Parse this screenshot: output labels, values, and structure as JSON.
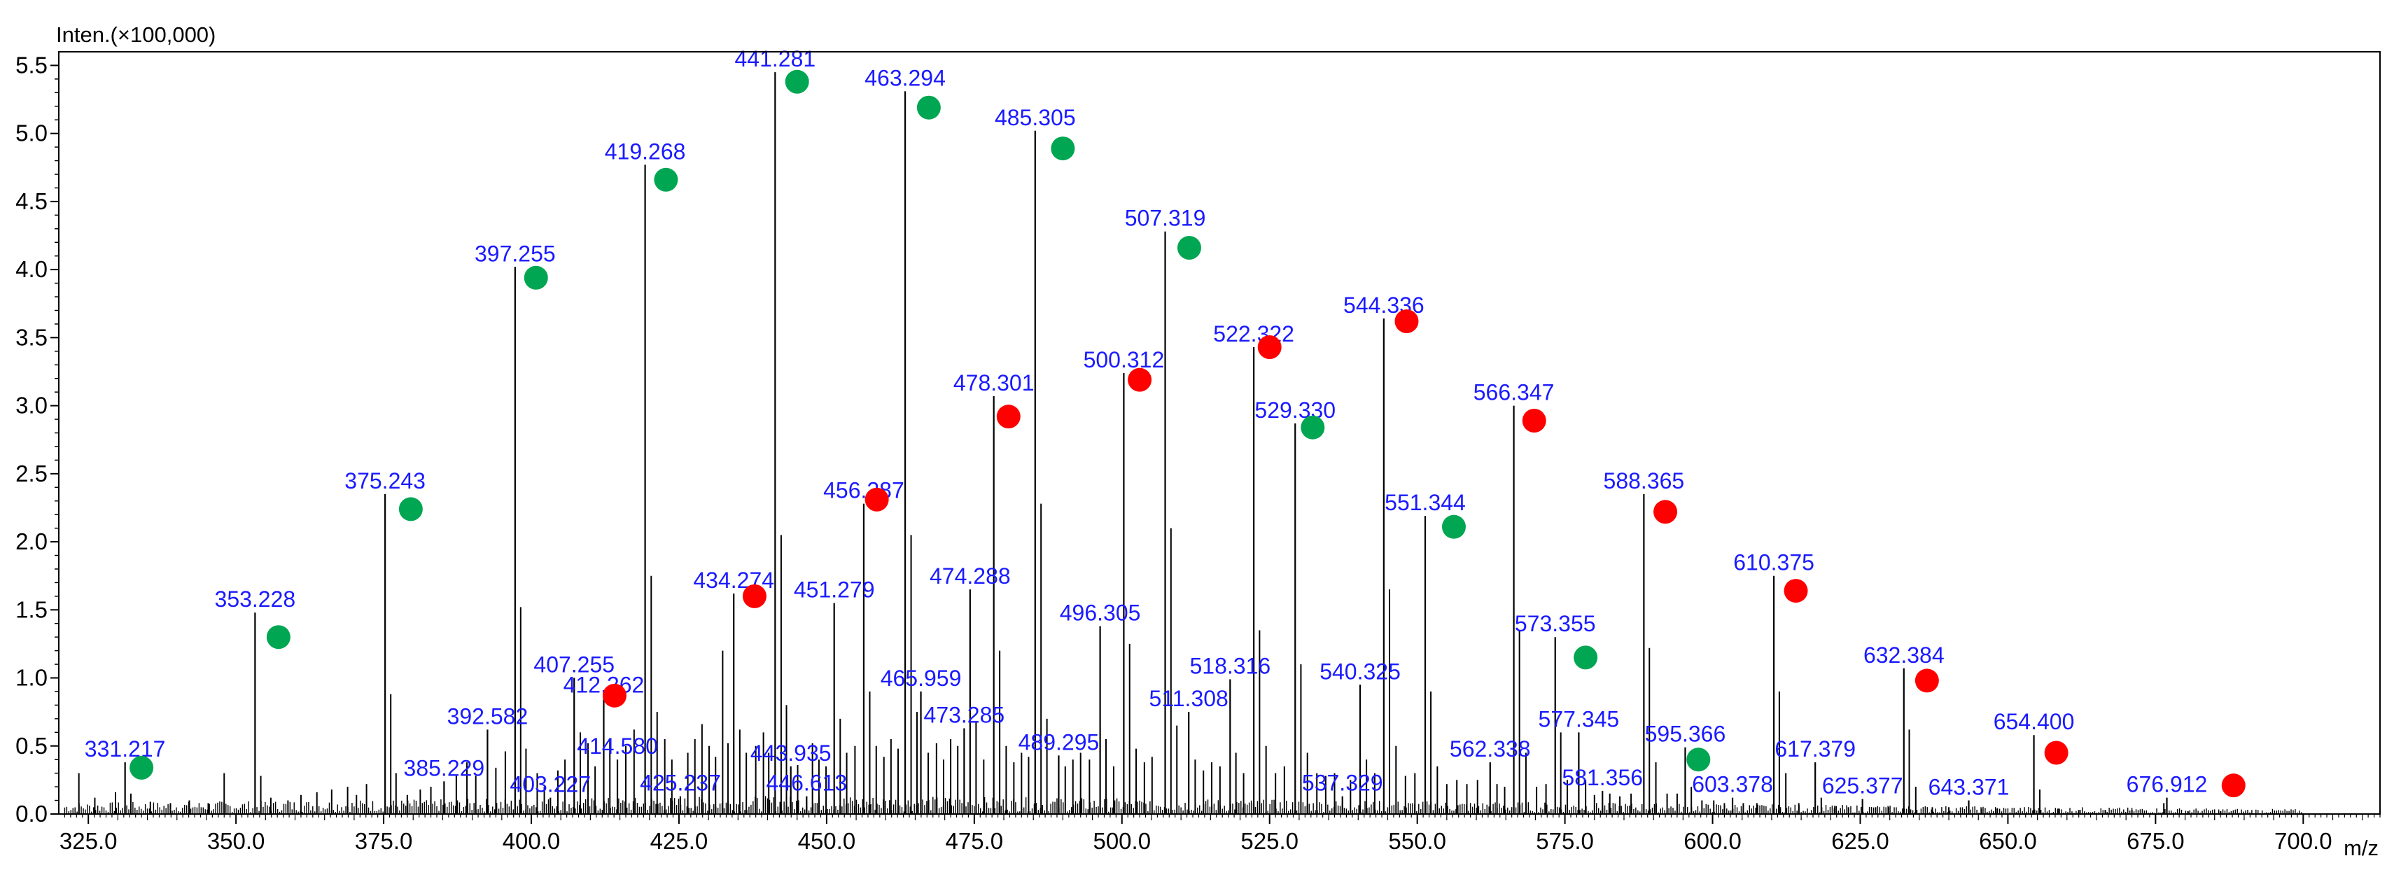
{
  "chart_data": {
    "type": "line",
    "subtype": "mass-spectrum",
    "title": "",
    "ylabel": "Inten.(×100,000)",
    "xlabel": "m/z",
    "xlim": [
      320.0,
      713.0
    ],
    "ylim": [
      0.0,
      5.6
    ],
    "xticks": [
      325.0,
      350.0,
      375.0,
      400.0,
      425.0,
      450.0,
      475.0,
      500.0,
      525.0,
      550.0,
      575.0,
      600.0,
      625.0,
      650.0,
      675.0,
      700.0
    ],
    "xtick_labels": [
      "325.0",
      "350.0",
      "375.0",
      "400.0",
      "425.0",
      "450.0",
      "475.0",
      "500.0",
      "525.0",
      "550.0",
      "575.0",
      "600.0",
      "625.0",
      "650.0",
      "675.0",
      "700.0"
    ],
    "yticks": [
      0.0,
      0.5,
      1.0,
      1.5,
      2.0,
      2.5,
      3.0,
      3.5,
      4.0,
      4.5,
      5.0,
      5.5
    ],
    "ytick_labels": [
      "0.0",
      "0.5",
      "1.0",
      "1.5",
      "2.0",
      "2.5",
      "3.0",
      "3.5",
      "4.0",
      "4.5",
      "5.0",
      "5.5"
    ],
    "colors": {
      "line": "#000000",
      "label": "#1a1aff",
      "green_marker": "#00a651",
      "red_marker": "#ff0000",
      "background": "#ffffff"
    },
    "labeled_peaks": [
      {
        "label": "331.217",
        "mz": 331.217,
        "intensity": 0.38
      },
      {
        "label": "353.228",
        "mz": 353.228,
        "intensity": 1.48
      },
      {
        "label": "375.243",
        "mz": 375.243,
        "intensity": 2.35
      },
      {
        "label": "385.229",
        "mz": 385.229,
        "intensity": 0.24
      },
      {
        "label": "392.582",
        "mz": 392.582,
        "intensity": 0.62
      },
      {
        "label": "397.255",
        "mz": 397.255,
        "intensity": 4.02
      },
      {
        "label": "403.227",
        "mz": 403.227,
        "intensity": 0.12
      },
      {
        "label": "407.255",
        "mz": 407.255,
        "intensity": 1.0
      },
      {
        "label": "412.262",
        "mz": 412.262,
        "intensity": 0.85
      },
      {
        "label": "414.580",
        "mz": 414.58,
        "intensity": 0.4
      },
      {
        "label": "419.268",
        "mz": 419.268,
        "intensity": 4.77
      },
      {
        "label": "425.237",
        "mz": 425.237,
        "intensity": 0.13
      },
      {
        "label": "434.274",
        "mz": 434.274,
        "intensity": 1.62
      },
      {
        "label": "441.281",
        "mz": 441.281,
        "intensity": 5.45
      },
      {
        "label": "443.935",
        "mz": 443.935,
        "intensity": 0.35
      },
      {
        "label": "446.613",
        "mz": 446.613,
        "intensity": 0.13
      },
      {
        "label": "451.279",
        "mz": 451.279,
        "intensity": 1.55
      },
      {
        "label": "456.287",
        "mz": 456.287,
        "intensity": 2.28
      },
      {
        "label": "463.294",
        "mz": 463.294,
        "intensity": 5.31
      },
      {
        "label": "465.959",
        "mz": 465.959,
        "intensity": 0.9
      },
      {
        "label": "473.285",
        "mz": 473.285,
        "intensity": 0.63
      },
      {
        "label": "474.288",
        "mz": 474.288,
        "intensity": 1.65
      },
      {
        "label": "478.301",
        "mz": 478.301,
        "intensity": 3.07
      },
      {
        "label": "485.305",
        "mz": 485.305,
        "intensity": 5.02
      },
      {
        "label": "489.295",
        "mz": 489.295,
        "intensity": 0.43
      },
      {
        "label": "496.305",
        "mz": 496.305,
        "intensity": 1.38
      },
      {
        "label": "500.312",
        "mz": 500.312,
        "intensity": 3.24
      },
      {
        "label": "507.319",
        "mz": 507.319,
        "intensity": 4.28
      },
      {
        "label": "511.308",
        "mz": 511.308,
        "intensity": 0.75
      },
      {
        "label": "518.316",
        "mz": 518.316,
        "intensity": 0.99
      },
      {
        "label": "522.322",
        "mz": 522.322,
        "intensity": 3.43
      },
      {
        "label": "529.330",
        "mz": 529.33,
        "intensity": 2.87
      },
      {
        "label": "537.329",
        "mz": 537.329,
        "intensity": 0.13
      },
      {
        "label": "540.325",
        "mz": 540.325,
        "intensity": 0.95
      },
      {
        "label": "544.336",
        "mz": 544.336,
        "intensity": 3.64
      },
      {
        "label": "551.344",
        "mz": 551.344,
        "intensity": 2.19
      },
      {
        "label": "562.338",
        "mz": 562.338,
        "intensity": 0.38
      },
      {
        "label": "566.347",
        "mz": 566.347,
        "intensity": 3.0
      },
      {
        "label": "573.355",
        "mz": 573.355,
        "intensity": 1.3
      },
      {
        "label": "577.345",
        "mz": 577.345,
        "intensity": 0.6
      },
      {
        "label": "581.356",
        "mz": 581.356,
        "intensity": 0.17
      },
      {
        "label": "588.365",
        "mz": 588.365,
        "intensity": 2.35
      },
      {
        "label": "595.366",
        "mz": 595.366,
        "intensity": 0.49
      },
      {
        "label": "603.378",
        "mz": 603.378,
        "intensity": 0.12
      },
      {
        "label": "610.375",
        "mz": 610.375,
        "intensity": 1.75
      },
      {
        "label": "617.379",
        "mz": 617.379,
        "intensity": 0.38
      },
      {
        "label": "625.377",
        "mz": 625.377,
        "intensity": 0.11
      },
      {
        "label": "632.384",
        "mz": 632.384,
        "intensity": 1.07
      },
      {
        "label": "643.371",
        "mz": 643.371,
        "intensity": 0.1
      },
      {
        "label": "654.400",
        "mz": 654.4,
        "intensity": 0.58
      },
      {
        "label": "676.912",
        "mz": 676.912,
        "intensity": 0.12
      }
    ],
    "markers": [
      {
        "series": "green",
        "mz": 334.0,
        "intensity": 0.34
      },
      {
        "series": "green",
        "mz": 357.2,
        "intensity": 1.3
      },
      {
        "series": "green",
        "mz": 379.6,
        "intensity": 2.24
      },
      {
        "series": "green",
        "mz": 400.8,
        "intensity": 3.94
      },
      {
        "series": "green",
        "mz": 422.8,
        "intensity": 4.66
      },
      {
        "series": "green",
        "mz": 445.0,
        "intensity": 5.38
      },
      {
        "series": "green",
        "mz": 467.3,
        "intensity": 5.19
      },
      {
        "series": "green",
        "mz": 490.0,
        "intensity": 4.89
      },
      {
        "series": "green",
        "mz": 511.4,
        "intensity": 4.16
      },
      {
        "series": "green",
        "mz": 532.3,
        "intensity": 2.84
      },
      {
        "series": "green",
        "mz": 556.2,
        "intensity": 2.11
      },
      {
        "series": "green",
        "mz": 578.5,
        "intensity": 1.15
      },
      {
        "series": "green",
        "mz": 597.6,
        "intensity": 0.4
      },
      {
        "series": "red",
        "mz": 414.1,
        "intensity": 0.87
      },
      {
        "series": "red",
        "mz": 437.8,
        "intensity": 1.6
      },
      {
        "series": "red",
        "mz": 458.5,
        "intensity": 2.31
      },
      {
        "series": "red",
        "mz": 480.8,
        "intensity": 2.92
      },
      {
        "series": "red",
        "mz": 503.0,
        "intensity": 3.19
      },
      {
        "series": "red",
        "mz": 525.0,
        "intensity": 3.43
      },
      {
        "series": "red",
        "mz": 548.2,
        "intensity": 3.62
      },
      {
        "series": "red",
        "mz": 569.8,
        "intensity": 2.89
      },
      {
        "series": "red",
        "mz": 592.0,
        "intensity": 2.22
      },
      {
        "series": "red",
        "mz": 614.1,
        "intensity": 1.64
      },
      {
        "series": "red",
        "mz": 636.3,
        "intensity": 0.98
      },
      {
        "series": "red",
        "mz": 658.2,
        "intensity": 0.45
      },
      {
        "series": "red",
        "mz": 688.2,
        "intensity": 0.21
      }
    ],
    "minor_peaks": [
      {
        "mz": 323.4,
        "intensity": 0.3
      },
      {
        "mz": 326.1,
        "intensity": 0.12
      },
      {
        "mz": 329.6,
        "intensity": 0.16
      },
      {
        "mz": 332.2,
        "intensity": 0.15
      },
      {
        "mz": 335.5,
        "intensity": 0.09
      },
      {
        "mz": 338.9,
        "intensity": 0.08
      },
      {
        "mz": 342.1,
        "intensity": 0.1
      },
      {
        "mz": 345.3,
        "intensity": 0.08
      },
      {
        "mz": 348.0,
        "intensity": 0.3
      },
      {
        "mz": 354.2,
        "intensity": 0.28
      },
      {
        "mz": 355.9,
        "intensity": 0.12
      },
      {
        "mz": 358.8,
        "intensity": 0.1
      },
      {
        "mz": 361.0,
        "intensity": 0.14
      },
      {
        "mz": 363.7,
        "intensity": 0.16
      },
      {
        "mz": 366.2,
        "intensity": 0.18
      },
      {
        "mz": 368.9,
        "intensity": 0.2
      },
      {
        "mz": 370.4,
        "intensity": 0.14
      },
      {
        "mz": 372.1,
        "intensity": 0.22
      },
      {
        "mz": 376.2,
        "intensity": 0.88
      },
      {
        "mz": 377.1,
        "intensity": 0.3
      },
      {
        "mz": 379.0,
        "intensity": 0.14
      },
      {
        "mz": 381.2,
        "intensity": 0.18
      },
      {
        "mz": 383.0,
        "intensity": 0.2
      },
      {
        "mz": 387.3,
        "intensity": 0.28
      },
      {
        "mz": 389.1,
        "intensity": 0.38
      },
      {
        "mz": 390.6,
        "intensity": 0.28
      },
      {
        "mz": 394.0,
        "intensity": 0.34
      },
      {
        "mz": 395.6,
        "intensity": 0.46
      },
      {
        "mz": 398.2,
        "intensity": 1.52
      },
      {
        "mz": 399.1,
        "intensity": 0.48
      },
      {
        "mz": 401.0,
        "intensity": 0.3
      },
      {
        "mz": 402.2,
        "intensity": 0.2
      },
      {
        "mz": 404.5,
        "intensity": 0.32
      },
      {
        "mz": 405.7,
        "intensity": 0.4
      },
      {
        "mz": 408.3,
        "intensity": 0.6
      },
      {
        "mz": 409.6,
        "intensity": 0.52
      },
      {
        "mz": 410.8,
        "intensity": 0.35
      },
      {
        "mz": 413.3,
        "intensity": 0.55
      },
      {
        "mz": 416.0,
        "intensity": 0.5
      },
      {
        "mz": 417.4,
        "intensity": 0.62
      },
      {
        "mz": 420.3,
        "intensity": 1.75
      },
      {
        "mz": 421.3,
        "intensity": 0.75
      },
      {
        "mz": 422.6,
        "intensity": 0.55
      },
      {
        "mz": 423.8,
        "intensity": 0.4
      },
      {
        "mz": 426.5,
        "intensity": 0.45
      },
      {
        "mz": 427.7,
        "intensity": 0.55
      },
      {
        "mz": 428.9,
        "intensity": 0.66
      },
      {
        "mz": 430.1,
        "intensity": 0.5
      },
      {
        "mz": 431.2,
        "intensity": 0.42
      },
      {
        "mz": 432.4,
        "intensity": 1.2
      },
      {
        "mz": 433.3,
        "intensity": 0.52
      },
      {
        "mz": 435.3,
        "intensity": 0.62
      },
      {
        "mz": 436.4,
        "intensity": 0.45
      },
      {
        "mz": 438.0,
        "intensity": 0.5
      },
      {
        "mz": 439.3,
        "intensity": 0.6
      },
      {
        "mz": 440.2,
        "intensity": 0.45
      },
      {
        "mz": 442.3,
        "intensity": 2.05
      },
      {
        "mz": 443.2,
        "intensity": 0.8
      },
      {
        "mz": 445.1,
        "intensity": 0.36
      },
      {
        "mz": 447.6,
        "intensity": 0.52
      },
      {
        "mz": 448.7,
        "intensity": 0.4
      },
      {
        "mz": 449.9,
        "intensity": 0.35
      },
      {
        "mz": 452.3,
        "intensity": 0.7
      },
      {
        "mz": 453.4,
        "intensity": 0.45
      },
      {
        "mz": 454.8,
        "intensity": 0.5
      },
      {
        "mz": 457.3,
        "intensity": 0.9
      },
      {
        "mz": 458.4,
        "intensity": 0.5
      },
      {
        "mz": 459.7,
        "intensity": 0.42
      },
      {
        "mz": 460.9,
        "intensity": 0.55
      },
      {
        "mz": 462.1,
        "intensity": 0.48
      },
      {
        "mz": 464.3,
        "intensity": 2.05
      },
      {
        "mz": 465.3,
        "intensity": 0.75
      },
      {
        "mz": 467.2,
        "intensity": 0.45
      },
      {
        "mz": 468.6,
        "intensity": 0.52
      },
      {
        "mz": 469.8,
        "intensity": 0.4
      },
      {
        "mz": 471.0,
        "intensity": 0.55
      },
      {
        "mz": 472.2,
        "intensity": 0.5
      },
      {
        "mz": 475.3,
        "intensity": 0.68
      },
      {
        "mz": 476.6,
        "intensity": 0.4
      },
      {
        "mz": 479.3,
        "intensity": 1.2
      },
      {
        "mz": 480.4,
        "intensity": 0.5
      },
      {
        "mz": 481.7,
        "intensity": 0.38
      },
      {
        "mz": 483.0,
        "intensity": 0.45
      },
      {
        "mz": 484.2,
        "intensity": 0.42
      },
      {
        "mz": 486.3,
        "intensity": 2.28
      },
      {
        "mz": 487.3,
        "intensity": 0.7
      },
      {
        "mz": 490.4,
        "intensity": 0.35
      },
      {
        "mz": 491.7,
        "intensity": 0.4
      },
      {
        "mz": 493.0,
        "intensity": 0.45
      },
      {
        "mz": 494.5,
        "intensity": 0.4
      },
      {
        "mz": 497.3,
        "intensity": 0.55
      },
      {
        "mz": 498.6,
        "intensity": 0.35
      },
      {
        "mz": 501.3,
        "intensity": 1.25
      },
      {
        "mz": 502.4,
        "intensity": 0.48
      },
      {
        "mz": 503.8,
        "intensity": 0.38
      },
      {
        "mz": 505.1,
        "intensity": 0.42
      },
      {
        "mz": 508.3,
        "intensity": 2.1
      },
      {
        "mz": 509.3,
        "intensity": 0.65
      },
      {
        "mz": 512.4,
        "intensity": 0.4
      },
      {
        "mz": 513.8,
        "intensity": 0.32
      },
      {
        "mz": 515.2,
        "intensity": 0.38
      },
      {
        "mz": 516.6,
        "intensity": 0.35
      },
      {
        "mz": 519.3,
        "intensity": 0.45
      },
      {
        "mz": 520.6,
        "intensity": 0.3
      },
      {
        "mz": 523.3,
        "intensity": 1.35
      },
      {
        "mz": 524.4,
        "intensity": 0.5
      },
      {
        "mz": 526.0,
        "intensity": 0.3
      },
      {
        "mz": 527.5,
        "intensity": 0.35
      },
      {
        "mz": 530.3,
        "intensity": 1.1
      },
      {
        "mz": 531.4,
        "intensity": 0.45
      },
      {
        "mz": 533.0,
        "intensity": 0.3
      },
      {
        "mz": 534.5,
        "intensity": 0.28
      },
      {
        "mz": 536.0,
        "intensity": 0.3
      },
      {
        "mz": 538.7,
        "intensity": 0.25
      },
      {
        "mz": 541.4,
        "intensity": 0.4
      },
      {
        "mz": 542.8,
        "intensity": 0.3
      },
      {
        "mz": 545.3,
        "intensity": 1.65
      },
      {
        "mz": 546.4,
        "intensity": 0.5
      },
      {
        "mz": 548.0,
        "intensity": 0.28
      },
      {
        "mz": 549.6,
        "intensity": 0.3
      },
      {
        "mz": 552.3,
        "intensity": 0.9
      },
      {
        "mz": 553.4,
        "intensity": 0.35
      },
      {
        "mz": 555.0,
        "intensity": 0.22
      },
      {
        "mz": 556.7,
        "intensity": 0.25
      },
      {
        "mz": 558.4,
        "intensity": 0.22
      },
      {
        "mz": 560.2,
        "intensity": 0.25
      },
      {
        "mz": 563.5,
        "intensity": 0.22
      },
      {
        "mz": 564.8,
        "intensity": 0.2
      },
      {
        "mz": 567.3,
        "intensity": 1.35
      },
      {
        "mz": 568.4,
        "intensity": 0.45
      },
      {
        "mz": 570.2,
        "intensity": 0.2
      },
      {
        "mz": 571.8,
        "intensity": 0.22
      },
      {
        "mz": 574.3,
        "intensity": 0.6
      },
      {
        "mz": 575.4,
        "intensity": 0.25
      },
      {
        "mz": 578.5,
        "intensity": 0.25
      },
      {
        "mz": 580.0,
        "intensity": 0.14
      },
      {
        "mz": 582.6,
        "intensity": 0.15
      },
      {
        "mz": 584.3,
        "intensity": 0.13
      },
      {
        "mz": 586.2,
        "intensity": 0.15
      },
      {
        "mz": 589.3,
        "intensity": 1.22
      },
      {
        "mz": 590.4,
        "intensity": 0.38
      },
      {
        "mz": 592.3,
        "intensity": 0.15
      },
      {
        "mz": 594.0,
        "intensity": 0.15
      },
      {
        "mz": 596.4,
        "intensity": 0.2
      },
      {
        "mz": 598.2,
        "intensity": 0.1
      },
      {
        "mz": 600.2,
        "intensity": 0.1
      },
      {
        "mz": 602.0,
        "intensity": 0.08
      },
      {
        "mz": 605.2,
        "intensity": 0.08
      },
      {
        "mz": 607.5,
        "intensity": 0.08
      },
      {
        "mz": 611.3,
        "intensity": 0.9
      },
      {
        "mz": 612.4,
        "intensity": 0.3
      },
      {
        "mz": 614.6,
        "intensity": 0.08
      },
      {
        "mz": 618.4,
        "intensity": 0.12
      },
      {
        "mz": 620.7,
        "intensity": 0.06
      },
      {
        "mz": 623.0,
        "intensity": 0.05
      },
      {
        "mz": 627.6,
        "intensity": 0.05
      },
      {
        "mz": 629.8,
        "intensity": 0.05
      },
      {
        "mz": 633.3,
        "intensity": 0.62
      },
      {
        "mz": 634.4,
        "intensity": 0.2
      },
      {
        "mz": 637.2,
        "intensity": 0.05
      },
      {
        "mz": 640.0,
        "intensity": 0.05
      },
      {
        "mz": 645.5,
        "intensity": 0.04
      },
      {
        "mz": 648.0,
        "intensity": 0.04
      },
      {
        "mz": 655.4,
        "intensity": 0.18
      },
      {
        "mz": 658.5,
        "intensity": 0.04
      },
      {
        "mz": 662.0,
        "intensity": 0.03
      },
      {
        "mz": 666.5,
        "intensity": 0.03
      },
      {
        "mz": 671.0,
        "intensity": 0.03
      },
      {
        "mz": 676.4,
        "intensity": 0.08
      },
      {
        "mz": 680.5,
        "intensity": 0.02
      },
      {
        "mz": 686.0,
        "intensity": 0.02
      }
    ]
  }
}
